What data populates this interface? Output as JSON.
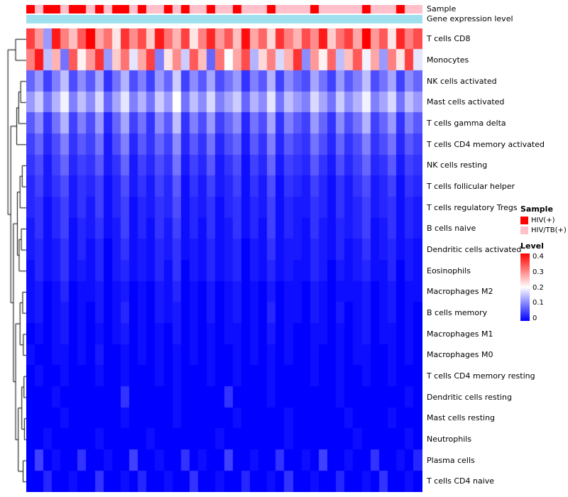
{
  "annotation": {
    "sample_label": "Sample",
    "gene_label": "Gene expression level"
  },
  "legend": {
    "sample_title": "Sample",
    "sample_items": [
      {
        "label": "HIV(+)",
        "color": "#FF0000"
      },
      {
        "label": "HIV/TB(+)",
        "color": "#FFC0CB"
      }
    ],
    "level_title": "Level",
    "level_ticks": [
      "0.4",
      "0.3",
      "0.2",
      "0.1",
      "0"
    ]
  },
  "chart_data": {
    "type": "heatmap",
    "title": "",
    "rows": [
      "T cells CD8",
      "Monocytes",
      "NK cells activated",
      "Mast cells activated",
      "T cells gamma delta",
      "T cells CD4 memory activated",
      "NK cells resting",
      "T cells follicular helper",
      "T cells regulatory Tregs",
      "B cells naive",
      "Dendritic cells activated",
      "Eosinophils",
      "Macrophages M2",
      "B cells memory",
      "Macrophages M1",
      "Macrophages M0",
      "T cells CD4 memory resting",
      "Dendritic cells resting",
      "Mast cells resting",
      "Neutrophils",
      "Plasma cells",
      "T cells CD4 naive"
    ],
    "n_columns": 46,
    "column_annotation": {
      "name": "Sample",
      "values": [
        "HIV(+)",
        "HIV/TB(+)",
        "HIV(+)",
        "HIV(+)",
        "HIV/TB(+)",
        "HIV(+)",
        "HIV(+)",
        "HIV/TB(+)",
        "HIV(+)",
        "HIV/TB(+)",
        "HIV(+)",
        "HIV(+)",
        "HIV/TB(+)",
        "HIV(+)",
        "HIV/TB(+)",
        "HIV/TB(+)",
        "HIV(+)",
        "HIV/TB(+)",
        "HIV(+)",
        "HIV/TB(+)",
        "HIV/TB(+)",
        "HIV(+)",
        "HIV/TB(+)",
        "HIV/TB(+)",
        "HIV(+)",
        "HIV/TB(+)",
        "HIV/TB(+)",
        "HIV/TB(+)",
        "HIV(+)",
        "HIV/TB(+)",
        "HIV/TB(+)",
        "HIV/TB(+)",
        "HIV/TB(+)",
        "HIV(+)",
        "HIV/TB(+)",
        "HIV/TB(+)",
        "HIV/TB(+)",
        "HIV/TB(+)",
        "HIV/TB(+)",
        "HIV(+)",
        "HIV/TB(+)",
        "HIV/TB(+)",
        "HIV/TB(+)",
        "HIV(+)",
        "HIV/TB(+)",
        "HIV/TB(+)"
      ]
    },
    "gene_expression_annotation": {
      "name": "Gene expression level",
      "uniform_color": "#9FE0EF"
    },
    "colormap": {
      "min": 0,
      "mid": 0.2,
      "max": 0.4,
      "min_color": "#0000FF",
      "mid_color": "#FFFFFF",
      "max_color": "#FF0000"
    },
    "legend_range": [
      0,
      0.4
    ],
    "values": [
      [
        0.35,
        0.28,
        0.12,
        0.38,
        0.3,
        0.25,
        0.33,
        0.4,
        0.27,
        0.31,
        0.22,
        0.36,
        0.29,
        0.34,
        0.24,
        0.38,
        0.31,
        0.26,
        0.35,
        0.22,
        0.3,
        0.37,
        0.28,
        0.33,
        0.25,
        0.39,
        0.27,
        0.32,
        0.23,
        0.36,
        0.3,
        0.26,
        0.34,
        0.29,
        0.38,
        0.24,
        0.31,
        0.35,
        0.27,
        0.4,
        0.28,
        0.33,
        0.22,
        0.37,
        0.3,
        0.34
      ],
      [
        0.3,
        0.38,
        0.15,
        0.26,
        0.09,
        0.33,
        0.21,
        0.28,
        0.36,
        0.12,
        0.24,
        0.31,
        0.18,
        0.27,
        0.35,
        0.1,
        0.22,
        0.29,
        0.16,
        0.33,
        0.25,
        0.08,
        0.31,
        0.2,
        0.27,
        0.34,
        0.14,
        0.23,
        0.3,
        0.17,
        0.26,
        0.36,
        0.11,
        0.28,
        0.21,
        0.32,
        0.15,
        0.25,
        0.33,
        0.19,
        0.27,
        0.12,
        0.3,
        0.22,
        0.35,
        0.18
      ],
      [
        0.08,
        0.12,
        0.05,
        0.1,
        0.15,
        0.06,
        0.11,
        0.07,
        0.13,
        0.04,
        0.09,
        0.14,
        0.06,
        0.1,
        0.05,
        0.12,
        0.08,
        0.16,
        0.05,
        0.11,
        0.07,
        0.13,
        0.06,
        0.09,
        0.12,
        0.04,
        0.1,
        0.07,
        0.14,
        0.05,
        0.11,
        0.08,
        0.06,
        0.13,
        0.09,
        0.05,
        0.12,
        0.07,
        0.1,
        0.15,
        0.06,
        0.09,
        0.13,
        0.05,
        0.11,
        0.08
      ],
      [
        0.12,
        0.16,
        0.09,
        0.14,
        0.19,
        0.1,
        0.15,
        0.11,
        0.17,
        0.08,
        0.13,
        0.18,
        0.1,
        0.14,
        0.09,
        0.16,
        0.12,
        0.2,
        0.09,
        0.15,
        0.11,
        0.17,
        0.1,
        0.13,
        0.16,
        0.08,
        0.14,
        0.11,
        0.18,
        0.09,
        0.15,
        0.12,
        0.1,
        0.17,
        0.13,
        0.09,
        0.16,
        0.11,
        0.14,
        0.19,
        0.1,
        0.13,
        0.17,
        0.09,
        0.15,
        0.12
      ],
      [
        0.07,
        0.11,
        0.04,
        0.09,
        0.14,
        0.05,
        0.1,
        0.06,
        0.12,
        0.03,
        0.08,
        0.13,
        0.05,
        0.09,
        0.04,
        0.11,
        0.07,
        0.15,
        0.04,
        0.1,
        0.06,
        0.12,
        0.05,
        0.08,
        0.11,
        0.03,
        0.09,
        0.06,
        0.13,
        0.04,
        0.1,
        0.07,
        0.05,
        0.12,
        0.08,
        0.04,
        0.11,
        0.06,
        0.09,
        0.14,
        0.05,
        0.08,
        0.12,
        0.04,
        0.1,
        0.07
      ],
      [
        0.05,
        0.08,
        0.03,
        0.06,
        0.1,
        0.04,
        0.07,
        0.05,
        0.09,
        0.02,
        0.06,
        0.1,
        0.03,
        0.07,
        0.04,
        0.08,
        0.05,
        0.11,
        0.03,
        0.07,
        0.04,
        0.09,
        0.03,
        0.06,
        0.08,
        0.02,
        0.07,
        0.04,
        0.1,
        0.03,
        0.07,
        0.05,
        0.04,
        0.09,
        0.06,
        0.03,
        0.08,
        0.04,
        0.06,
        0.1,
        0.04,
        0.06,
        0.09,
        0.03,
        0.07,
        0.05
      ],
      [
        0.04,
        0.06,
        0.02,
        0.05,
        0.08,
        0.03,
        0.05,
        0.04,
        0.07,
        0.02,
        0.04,
        0.08,
        0.02,
        0.05,
        0.03,
        0.06,
        0.04,
        0.09,
        0.02,
        0.05,
        0.03,
        0.07,
        0.02,
        0.04,
        0.06,
        0.01,
        0.05,
        0.03,
        0.08,
        0.02,
        0.05,
        0.04,
        0.03,
        0.07,
        0.04,
        0.02,
        0.06,
        0.03,
        0.05,
        0.08,
        0.03,
        0.04,
        0.07,
        0.02,
        0.05,
        0.04
      ],
      [
        0.03,
        0.05,
        0.02,
        0.04,
        0.06,
        0.02,
        0.04,
        0.03,
        0.05,
        0.01,
        0.03,
        0.06,
        0.02,
        0.04,
        0.02,
        0.05,
        0.03,
        0.07,
        0.01,
        0.04,
        0.02,
        0.05,
        0.02,
        0.03,
        0.05,
        0.01,
        0.04,
        0.02,
        0.06,
        0.01,
        0.04,
        0.03,
        0.02,
        0.05,
        0.03,
        0.01,
        0.04,
        0.02,
        0.04,
        0.06,
        0.02,
        0.03,
        0.05,
        0.01,
        0.04,
        0.03
      ],
      [
        0.03,
        0.04,
        0.01,
        0.03,
        0.05,
        0.02,
        0.04,
        0.02,
        0.05,
        0.01,
        0.03,
        0.05,
        0.01,
        0.03,
        0.02,
        0.04,
        0.03,
        0.06,
        0.01,
        0.03,
        0.02,
        0.04,
        0.01,
        0.03,
        0.04,
        0.01,
        0.03,
        0.02,
        0.05,
        0.01,
        0.03,
        0.02,
        0.02,
        0.04,
        0.03,
        0.01,
        0.04,
        0.02,
        0.03,
        0.05,
        0.02,
        0.03,
        0.04,
        0.01,
        0.03,
        0.02
      ],
      [
        0.02,
        0.04,
        0.01,
        0.03,
        0.05,
        0.01,
        0.03,
        0.02,
        0.04,
        0.01,
        0.02,
        0.05,
        0.01,
        0.03,
        0.01,
        0.04,
        0.02,
        0.05,
        0.01,
        0.03,
        0.01,
        0.04,
        0.01,
        0.02,
        0.04,
        0.01,
        0.03,
        0.01,
        0.05,
        0.01,
        0.03,
        0.02,
        0.01,
        0.04,
        0.02,
        0.01,
        0.03,
        0.02,
        0.03,
        0.05,
        0.01,
        0.02,
        0.04,
        0.01,
        0.03,
        0.02
      ],
      [
        0.02,
        0.03,
        0.01,
        0.02,
        0.04,
        0.01,
        0.03,
        0.01,
        0.03,
        0.0,
        0.02,
        0.04,
        0.01,
        0.02,
        0.01,
        0.03,
        0.02,
        0.04,
        0.01,
        0.02,
        0.01,
        0.03,
        0.01,
        0.02,
        0.03,
        0.0,
        0.02,
        0.01,
        0.04,
        0.01,
        0.02,
        0.02,
        0.01,
        0.03,
        0.02,
        0.01,
        0.03,
        0.01,
        0.02,
        0.04,
        0.01,
        0.02,
        0.03,
        0.01,
        0.02,
        0.01
      ],
      [
        0.01,
        0.03,
        0.01,
        0.02,
        0.04,
        0.01,
        0.02,
        0.01,
        0.03,
        0.0,
        0.02,
        0.03,
        0.01,
        0.02,
        0.01,
        0.03,
        0.01,
        0.04,
        0.0,
        0.02,
        0.01,
        0.03,
        0.01,
        0.02,
        0.03,
        0.0,
        0.02,
        0.01,
        0.03,
        0.01,
        0.02,
        0.01,
        0.01,
        0.03,
        0.02,
        0.0,
        0.02,
        0.01,
        0.02,
        0.03,
        0.01,
        0.01,
        0.03,
        0.0,
        0.02,
        0.01
      ],
      [
        0.01,
        0.02,
        0.0,
        0.01,
        0.03,
        0.0,
        0.01,
        0.01,
        0.02,
        0.0,
        0.01,
        0.02,
        0.0,
        0.01,
        0.0,
        0.02,
        0.01,
        0.03,
        0.0,
        0.01,
        0.0,
        0.02,
        0.0,
        0.01,
        0.02,
        0.0,
        0.01,
        0.0,
        0.02,
        0.0,
        0.01,
        0.01,
        0.0,
        0.02,
        0.01,
        0.0,
        0.01,
        0.01,
        0.01,
        0.02,
        0.0,
        0.01,
        0.02,
        0.0,
        0.01,
        0.01
      ],
      [
        0.01,
        0.02,
        0.0,
        0.01,
        0.02,
        0.0,
        0.01,
        0.0,
        0.02,
        0.0,
        0.01,
        0.03,
        0.0,
        0.01,
        0.0,
        0.02,
        0.01,
        0.02,
        0.0,
        0.01,
        0.0,
        0.02,
        0.0,
        0.01,
        0.02,
        0.0,
        0.01,
        0.0,
        0.03,
        0.0,
        0.01,
        0.01,
        0.0,
        0.02,
        0.01,
        0.0,
        0.02,
        0.0,
        0.01,
        0.02,
        0.0,
        0.01,
        0.02,
        0.0,
        0.01,
        0.0
      ],
      [
        0.0,
        0.01,
        0.0,
        0.01,
        0.02,
        0.0,
        0.01,
        0.0,
        0.01,
        0.0,
        0.01,
        0.02,
        0.0,
        0.01,
        0.0,
        0.01,
        0.0,
        0.02,
        0.0,
        0.01,
        0.0,
        0.01,
        0.0,
        0.01,
        0.01,
        0.0,
        0.01,
        0.0,
        0.02,
        0.0,
        0.01,
        0.0,
        0.0,
        0.01,
        0.01,
        0.0,
        0.01,
        0.0,
        0.01,
        0.02,
        0.0,
        0.01,
        0.01,
        0.0,
        0.01,
        0.0
      ],
      [
        0.01,
        0.0,
        0.0,
        0.01,
        0.01,
        0.0,
        0.01,
        0.0,
        0.02,
        0.0,
        0.0,
        0.01,
        0.0,
        0.01,
        0.0,
        0.01,
        0.0,
        0.01,
        0.0,
        0.01,
        0.0,
        0.01,
        0.0,
        0.0,
        0.01,
        0.0,
        0.01,
        0.0,
        0.01,
        0.0,
        0.01,
        0.0,
        0.0,
        0.01,
        0.0,
        0.0,
        0.01,
        0.0,
        0.01,
        0.01,
        0.0,
        0.0,
        0.01,
        0.0,
        0.01,
        0.0
      ],
      [
        0.0,
        0.01,
        0.0,
        0.0,
        0.01,
        0.0,
        0.0,
        0.0,
        0.01,
        0.0,
        0.0,
        0.01,
        0.0,
        0.0,
        0.0,
        0.01,
        0.0,
        0.01,
        0.0,
        0.0,
        0.0,
        0.01,
        0.0,
        0.0,
        0.01,
        0.0,
        0.0,
        0.0,
        0.01,
        0.0,
        0.0,
        0.0,
        0.0,
        0.01,
        0.0,
        0.0,
        0.01,
        0.0,
        0.0,
        0.01,
        0.0,
        0.0,
        0.01,
        0.0,
        0.0,
        0.0
      ],
      [
        0.0,
        0.0,
        0.0,
        0.01,
        0.0,
        0.0,
        0.0,
        0.0,
        0.0,
        0.0,
        0.0,
        0.04,
        0.0,
        0.0,
        0.0,
        0.0,
        0.0,
        0.01,
        0.0,
        0.0,
        0.0,
        0.0,
        0.0,
        0.04,
        0.0,
        0.0,
        0.0,
        0.0,
        0.01,
        0.0,
        0.0,
        0.0,
        0.0,
        0.0,
        0.0,
        0.0,
        0.01,
        0.0,
        0.0,
        0.0,
        0.0,
        0.0,
        0.0,
        0.0,
        0.01,
        0.0
      ],
      [
        0.0,
        0.0,
        0.0,
        0.0,
        0.01,
        0.0,
        0.0,
        0.0,
        0.0,
        0.0,
        0.0,
        0.01,
        0.0,
        0.0,
        0.0,
        0.0,
        0.0,
        0.01,
        0.0,
        0.0,
        0.0,
        0.0,
        0.0,
        0.0,
        0.01,
        0.0,
        0.0,
        0.0,
        0.0,
        0.0,
        0.01,
        0.0,
        0.0,
        0.0,
        0.0,
        0.0,
        0.0,
        0.01,
        0.0,
        0.0,
        0.0,
        0.0,
        0.01,
        0.0,
        0.0,
        0.0
      ],
      [
        0.0,
        0.0,
        0.01,
        0.0,
        0.0,
        0.0,
        0.0,
        0.0,
        0.01,
        0.0,
        0.0,
        0.0,
        0.0,
        0.0,
        0.01,
        0.0,
        0.0,
        0.0,
        0.0,
        0.0,
        0.0,
        0.0,
        0.01,
        0.0,
        0.0,
        0.0,
        0.0,
        0.0,
        0.0,
        0.0,
        0.01,
        0.0,
        0.0,
        0.0,
        0.0,
        0.0,
        0.0,
        0.0,
        0.01,
        0.0,
        0.0,
        0.0,
        0.0,
        0.0,
        0.01,
        0.0
      ],
      [
        0.0,
        0.05,
        0.0,
        0.01,
        0.0,
        0.0,
        0.04,
        0.0,
        0.0,
        0.01,
        0.0,
        0.0,
        0.05,
        0.0,
        0.0,
        0.01,
        0.0,
        0.0,
        0.04,
        0.0,
        0.01,
        0.0,
        0.0,
        0.05,
        0.0,
        0.0,
        0.01,
        0.0,
        0.0,
        0.04,
        0.0,
        0.0,
        0.01,
        0.0,
        0.05,
        0.0,
        0.0,
        0.01,
        0.0,
        0.0,
        0.04,
        0.0,
        0.0,
        0.01,
        0.0,
        0.03
      ],
      [
        0.0,
        0.0,
        0.03,
        0.0,
        0.0,
        0.01,
        0.0,
        0.0,
        0.04,
        0.0,
        0.0,
        0.01,
        0.0,
        0.03,
        0.0,
        0.0,
        0.01,
        0.0,
        0.0,
        0.04,
        0.0,
        0.0,
        0.01,
        0.0,
        0.0,
        0.03,
        0.0,
        0.0,
        0.01,
        0.0,
        0.04,
        0.0,
        0.0,
        0.01,
        0.0,
        0.0,
        0.03,
        0.0,
        0.0,
        0.01,
        0.0,
        0.04,
        0.0,
        0.0,
        0.01,
        0.0
      ]
    ]
  }
}
